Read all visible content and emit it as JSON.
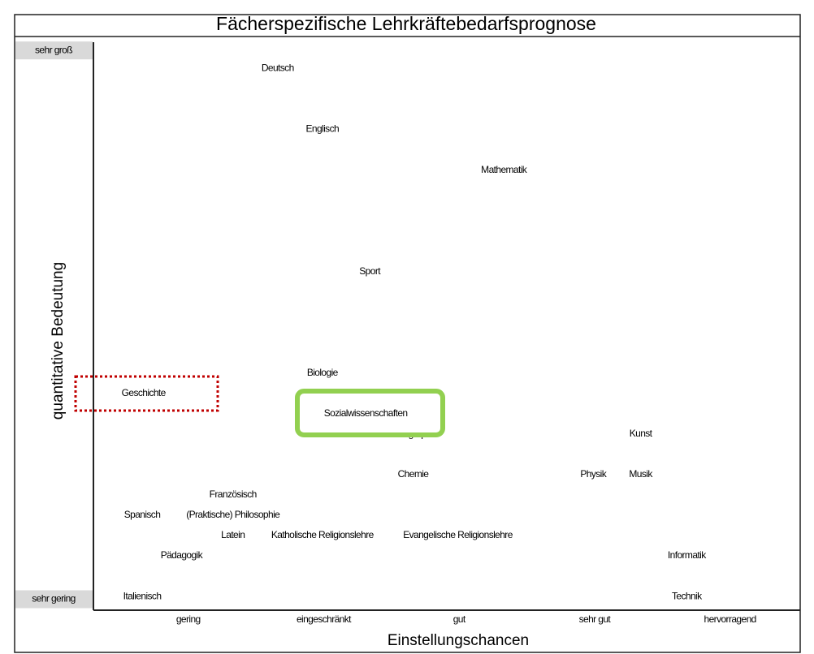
{
  "chart_data": {
    "type": "scatter",
    "title": "Fächerspezifische Lehrkräftebedarfsprognose",
    "x_label": "Einstellungschancen",
    "y_label": "quantitative Bedeutung",
    "xlim": [
      0.3,
      5.5
    ],
    "ylim": [
      -0.2,
      10.15
    ],
    "xticks": [
      {
        "value": 1,
        "label": "gering"
      },
      {
        "value": 2,
        "label": "eingeschränkt"
      },
      {
        "value": 3,
        "label": "gut"
      },
      {
        "value": 4,
        "label": "sehr gut"
      },
      {
        "value": 5,
        "label": "hervorragend"
      }
    ],
    "yticks": [
      {
        "value": 0,
        "label": "sehr gering"
      },
      {
        "value": 10,
        "label": "sehr groß"
      }
    ],
    "points": [
      {
        "label": "Deutsch",
        "x": 1.66,
        "y": 9.67
      },
      {
        "label": "Englisch",
        "x": 1.99,
        "y": 8.56
      },
      {
        "label": "Mathematik",
        "x": 3.33,
        "y": 7.82
      },
      {
        "label": "Sport",
        "x": 2.34,
        "y": 5.97
      },
      {
        "label": "Biologie",
        "x": 1.99,
        "y": 4.12
      },
      {
        "label": "Geschichte",
        "x": 0.67,
        "y": 3.75
      },
      {
        "label": "Geographie",
        "x": 2.67,
        "y": 3.0
      },
      {
        "label": "Sozialwissenschaften",
        "x": 2.31,
        "y": 3.38
      },
      {
        "label": "Kunst",
        "x": 4.34,
        "y": 3.01
      },
      {
        "label": "Chemie",
        "x": 2.66,
        "y": 2.27
      },
      {
        "label": "Physik",
        "x": 3.99,
        "y": 2.27
      },
      {
        "label": "Musik",
        "x": 4.34,
        "y": 2.27
      },
      {
        "label": "Französisch",
        "x": 1.33,
        "y": 1.9
      },
      {
        "label": "Spanisch",
        "x": 0.66,
        "y": 1.53
      },
      {
        "label": "(Praktische) Philosophie",
        "x": 1.33,
        "y": 1.53
      },
      {
        "label": "Latein",
        "x": 1.33,
        "y": 1.16
      },
      {
        "label": "Katholische Religionslehre",
        "x": 1.99,
        "y": 1.16
      },
      {
        "label": "Evangelische Religionslehre",
        "x": 2.99,
        "y": 1.16
      },
      {
        "label": "Pädagogik",
        "x": 0.95,
        "y": 0.79
      },
      {
        "label": "Informatik",
        "x": 4.68,
        "y": 0.79
      },
      {
        "label": "Italienisch",
        "x": 0.66,
        "y": 0.05
      },
      {
        "label": "Technik",
        "x": 4.68,
        "y": 0.05
      }
    ]
  }
}
